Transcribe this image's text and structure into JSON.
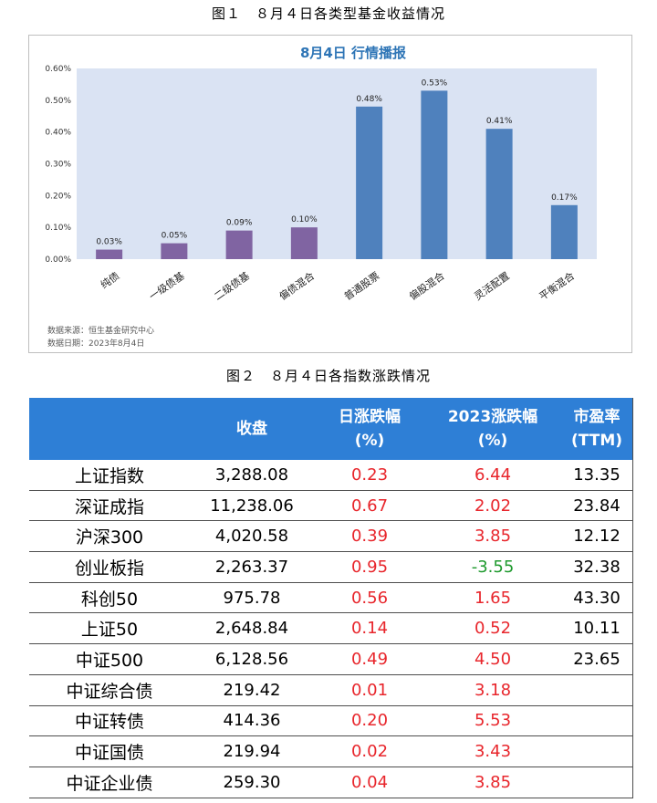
{
  "figure1": {
    "caption": "图１　８月４日各类型基金收益情况",
    "source_line": "数据来源：恒生基金研究中心",
    "date_line": "数据日期：2023年8月4日"
  },
  "figure2": {
    "caption": "图２　８月４日各指数涨跌情况"
  },
  "colors": {
    "purple_bar": "#8064a2",
    "blue_bar": "#4f81bd",
    "plot_bg": "#dae3f3",
    "title_blue": "#2e75b6",
    "table_header": "#2e7fd6",
    "up_red": "#e8262c",
    "down_green": "#1f9a2e"
  },
  "chart_data": {
    "type": "bar",
    "title": "8月4日  行情播报",
    "categories": [
      "纯债",
      "一级债基",
      "二级债基",
      "偏债混合",
      "普通股票",
      "偏股混合",
      "灵活配置",
      "平衡混合"
    ],
    "values": [
      0.03,
      0.05,
      0.09,
      0.1,
      0.48,
      0.53,
      0.41,
      0.17
    ],
    "data_labels": [
      "0.03%",
      "0.05%",
      "0.09%",
      "0.10%",
      "0.48%",
      "0.53%",
      "0.41%",
      "0.17%"
    ],
    "bar_colors": [
      "purple",
      "purple",
      "purple",
      "purple",
      "blue",
      "blue",
      "blue",
      "blue"
    ],
    "ylim": [
      0,
      0.6
    ],
    "yticks": [
      0.0,
      0.1,
      0.2,
      0.3,
      0.4,
      0.5,
      0.6
    ],
    "ytick_labels": [
      "0.00%",
      "0.10%",
      "0.20%",
      "0.30%",
      "0.40%",
      "0.50%",
      "0.60%"
    ],
    "xlabel": "",
    "ylabel": "",
    "grid": false
  },
  "table": {
    "headers": [
      {
        "line1": "",
        "line2": ""
      },
      {
        "line1": "收盘",
        "line2": ""
      },
      {
        "line1": "日涨跌幅",
        "line2": "(%)"
      },
      {
        "line1": "2023涨跌幅",
        "line2": "(%)"
      },
      {
        "line1": "市盈率",
        "line2": "(TTM)"
      }
    ],
    "rows": [
      {
        "name": "上证指数",
        "close": "3,288.08",
        "day": "0.23",
        "ytd": "6.44",
        "pe": "13.35"
      },
      {
        "name": "深证成指",
        "close": "11,238.06",
        "day": "0.67",
        "ytd": "2.02",
        "pe": "23.84"
      },
      {
        "name": "沪深300",
        "close": "4,020.58",
        "day": "0.39",
        "ytd": "3.85",
        "pe": "12.12"
      },
      {
        "name": "创业板指",
        "close": "2,263.37",
        "day": "0.95",
        "ytd": "-3.55",
        "pe": "32.38"
      },
      {
        "name": "科创50",
        "close": "975.78",
        "day": "0.56",
        "ytd": "1.65",
        "pe": "43.30"
      },
      {
        "name": "上证50",
        "close": "2,648.84",
        "day": "0.14",
        "ytd": "0.52",
        "pe": "10.11"
      },
      {
        "name": "中证500",
        "close": "6,128.56",
        "day": "0.49",
        "ytd": "4.50",
        "pe": "23.65"
      },
      {
        "name": "中证综合债",
        "close": "219.42",
        "day": "0.01",
        "ytd": "3.18",
        "pe": ""
      },
      {
        "name": "中证转债",
        "close": "414.36",
        "day": "0.20",
        "ytd": "5.53",
        "pe": ""
      },
      {
        "name": "中证国债",
        "close": "219.94",
        "day": "0.02",
        "ytd": "3.43",
        "pe": ""
      },
      {
        "name": "中证企业债",
        "close": "259.30",
        "day": "0.04",
        "ytd": "3.85",
        "pe": ""
      }
    ]
  }
}
